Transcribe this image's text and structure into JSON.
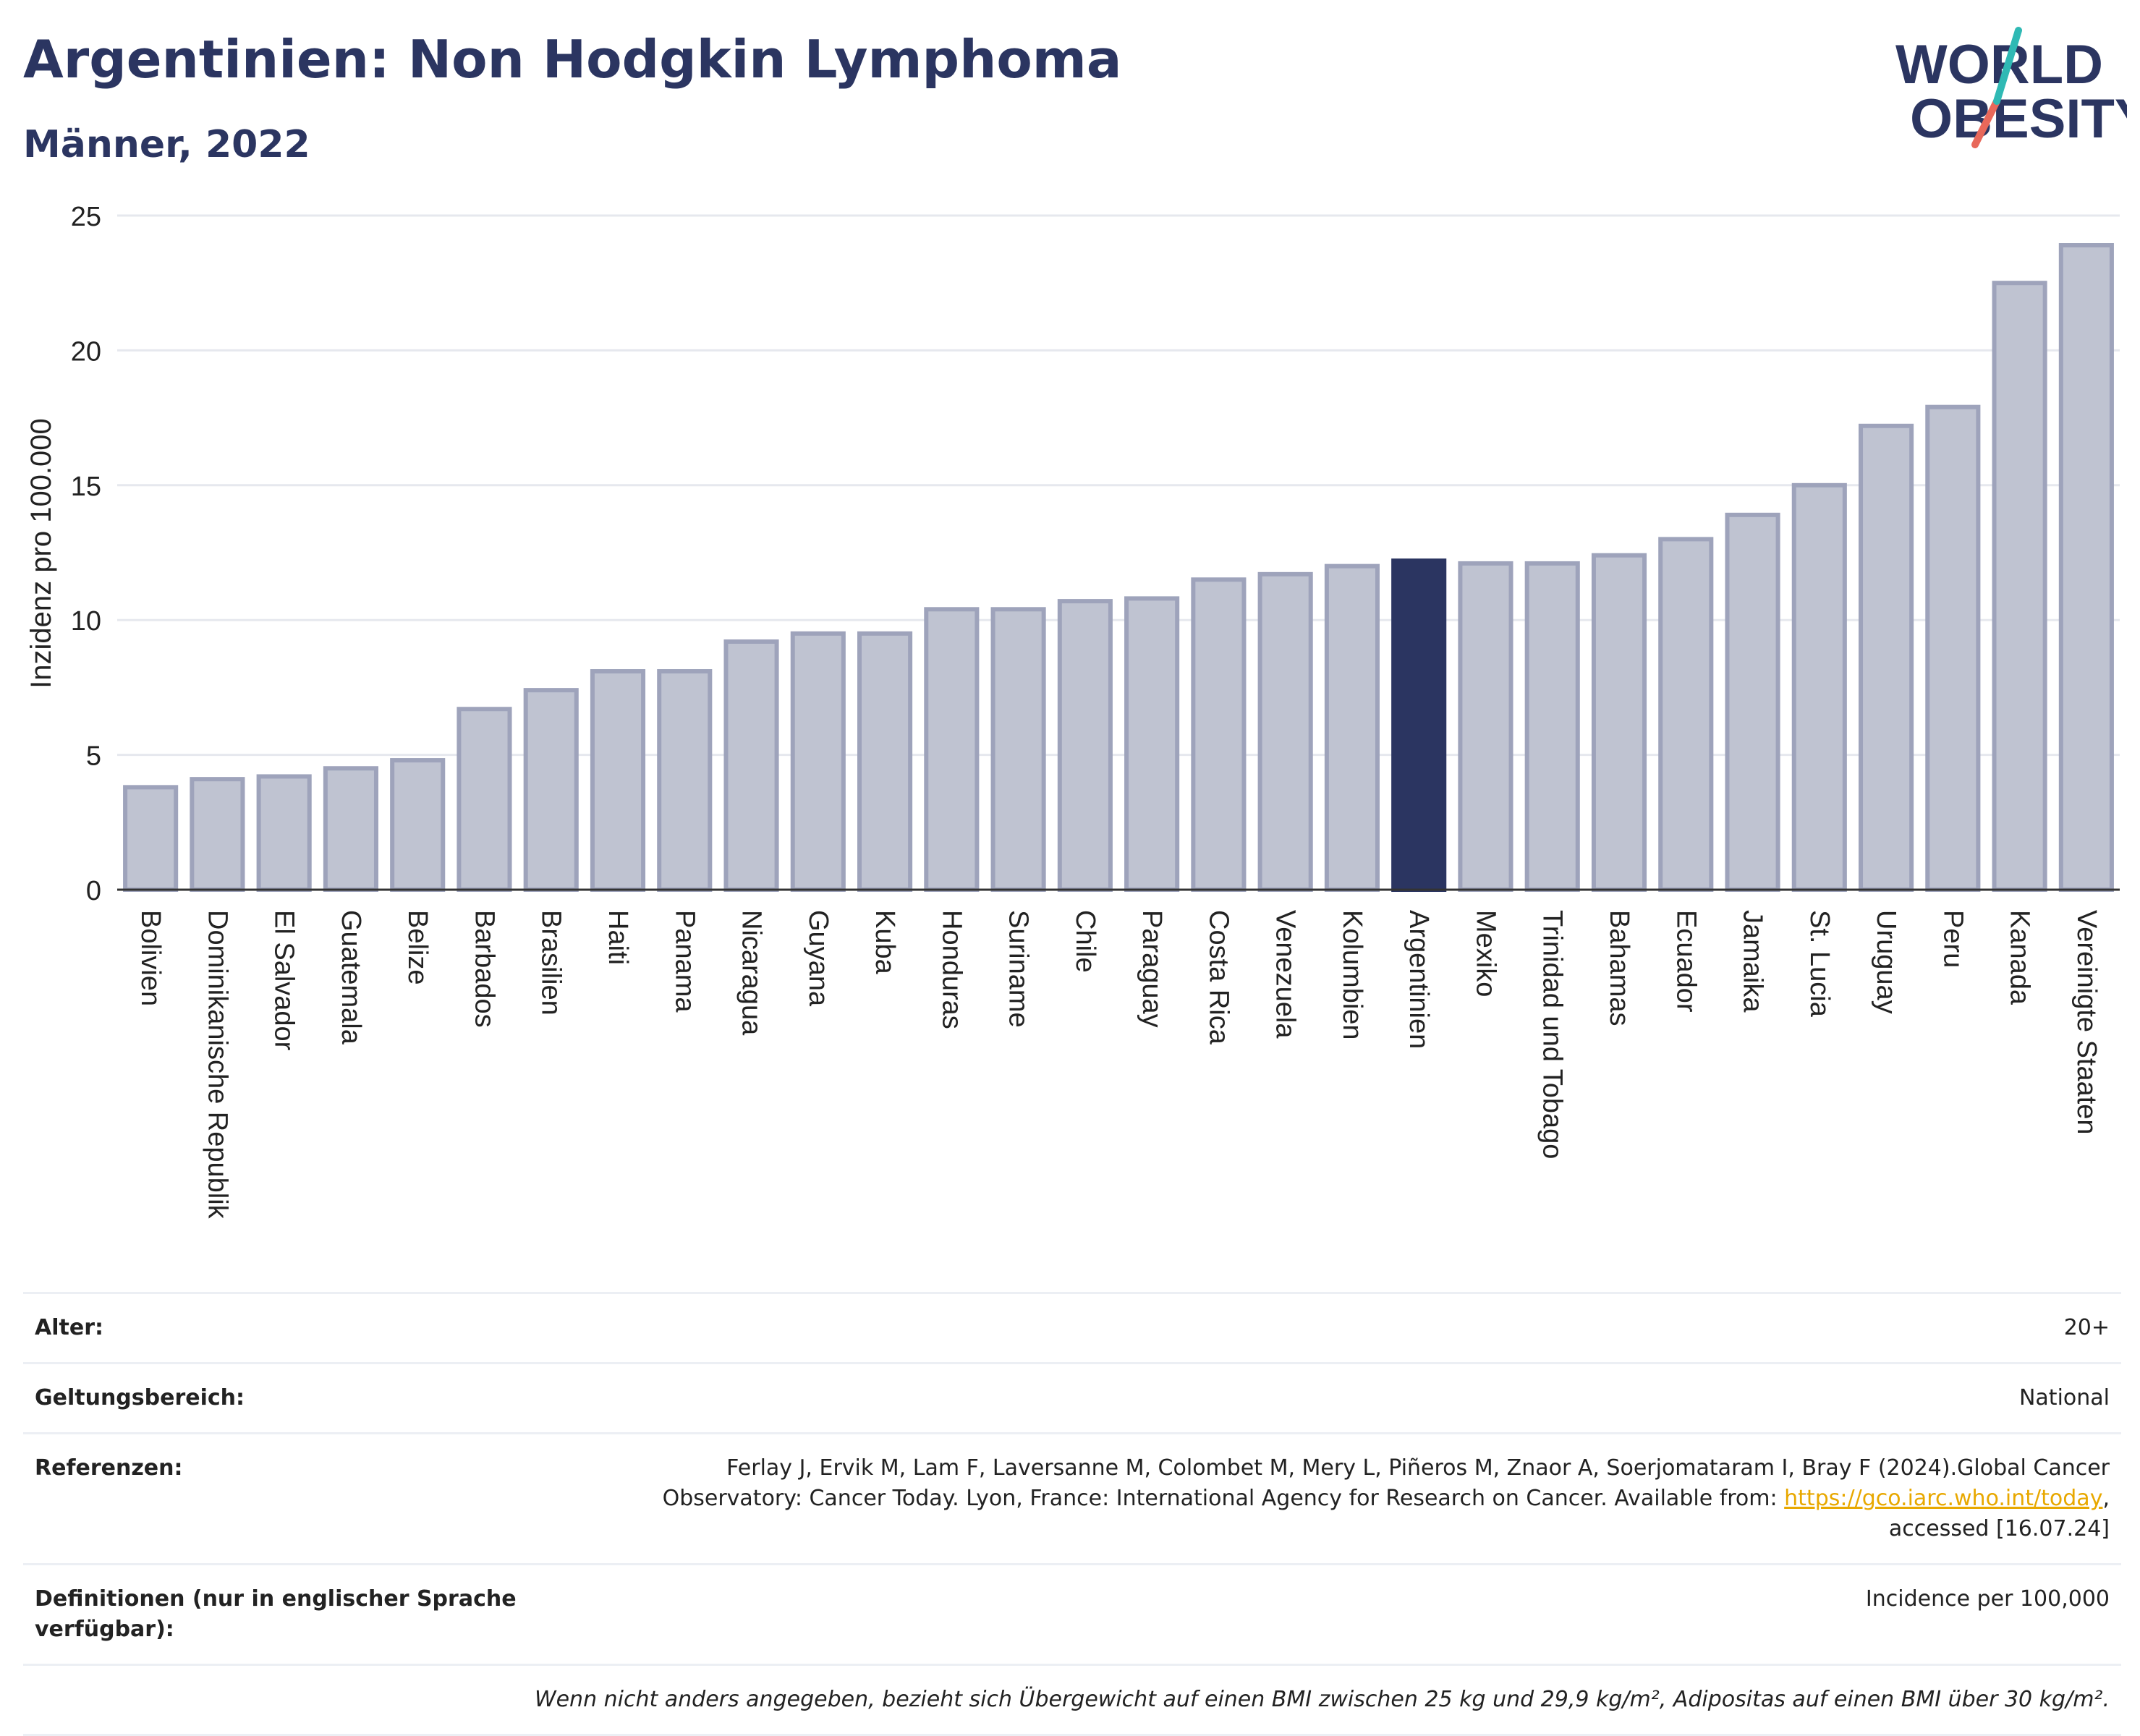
{
  "header": {
    "title": "Argentinien: Non Hodgkin Lymphoma",
    "subtitle": "Männer, 2022",
    "logo_text_top": "WORLD",
    "logo_text_bottom": "OBESITY"
  },
  "colors": {
    "bar_fill": "#bfc3d1",
    "bar_stroke": "#9ea3bb",
    "highlight": "#2b3561",
    "title": "#2b3561",
    "logo_teal": "#2fb9b4",
    "logo_coral": "#e8685a",
    "link": "#e8a800"
  },
  "chart_data": {
    "type": "bar",
    "ylabel": "Inzidenz pro 100.000",
    "xlabel": "",
    "ylim": [
      0,
      25
    ],
    "yticks": [
      0,
      5,
      10,
      15,
      20,
      25
    ],
    "grid": true,
    "highlight_category": "Argentinien",
    "categories": [
      "Bolivien",
      "Dominikanische Republik",
      "El Salvador",
      "Guatemala",
      "Belize",
      "Barbados",
      "Brasilien",
      "Haiti",
      "Panama",
      "Nicaragua",
      "Guyana",
      "Kuba",
      "Honduras",
      "Suriname",
      "Chile",
      "Paraguay",
      "Costa Rica",
      "Venezuela",
      "Kolumbien",
      "Argentinien",
      "Mexiko",
      "Trinidad und Tobago",
      "Bahamas",
      "Ecuador",
      "Jamaika",
      "St. Lucia",
      "Uruguay",
      "Peru",
      "Kanada",
      "Vereinigte Staaten"
    ],
    "values": [
      3.8,
      4.1,
      4.2,
      4.5,
      4.8,
      6.7,
      7.4,
      8.1,
      8.1,
      9.2,
      9.5,
      9.5,
      10.4,
      10.4,
      10.7,
      10.8,
      11.5,
      11.7,
      12.0,
      12.2,
      12.1,
      12.1,
      12.4,
      13.0,
      13.9,
      15.0,
      17.2,
      17.9,
      22.5,
      23.9
    ]
  },
  "meta": {
    "age_label": "Alter:",
    "age_value": "20+",
    "scope_label": "Geltungsbereich:",
    "scope_value": "National",
    "refs_label": "Referenzen:",
    "refs_text_1": "Ferlay J, Ervik M, Lam F, Laversanne M, Colombet M, Mery L, Piñeros M, Znaor A, Soerjomataram I, Bray F (2024).Global Cancer",
    "refs_text_2": "Observatory: Cancer Today. Lyon, France: International Agency for Research on Cancer. Available from: ",
    "refs_link": "https://gco.iarc.who.int/today",
    "refs_text_3": ",",
    "refs_text_4": "accessed [16.07.24]",
    "defs_label": "Definitionen (nur in englischer Sprache verfügbar):",
    "defs_value": "Incidence per 100,000",
    "footnote": "Wenn nicht anders angegeben, bezieht sich Übergewicht auf einen BMI zwischen 25 kg und 29,9 kg/m², Adipositas auf einen BMI über 30 kg/m²."
  }
}
